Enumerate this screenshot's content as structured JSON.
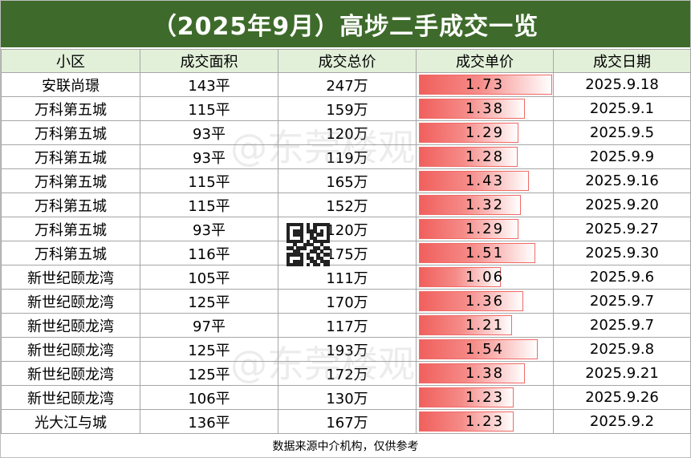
{
  "title": "（2025年9月）高埗二手成交一览",
  "headers": [
    "小区",
    "成交面积",
    "成交总价",
    "成交单价",
    "成交日期"
  ],
  "rows": [
    {
      "community": "安联尚璟",
      "area": "143平",
      "total": "247万",
      "unit_price": "1.73",
      "date": "2025.9.18"
    },
    {
      "community": "万科第五城",
      "area": "115平",
      "total": "159万",
      "unit_price": "1.38",
      "date": "2025.9.1"
    },
    {
      "community": "万科第五城",
      "area": "93平",
      "total": "120万",
      "unit_price": "1.29",
      "date": "2025.9.5"
    },
    {
      "community": "万科第五城",
      "area": "93平",
      "total": "119万",
      "unit_price": "1.28",
      "date": "2025.9.9"
    },
    {
      "community": "万科第五城",
      "area": "115平",
      "total": "165万",
      "unit_price": "1.43",
      "date": "2025.9.16"
    },
    {
      "community": "万科第五城",
      "area": "115平",
      "total": "152万",
      "unit_price": "1.32",
      "date": "2025.9.20"
    },
    {
      "community": "万科第五城",
      "area": "93平",
      "total": "120万",
      "unit_price": "1.29",
      "date": "2025.9.27"
    },
    {
      "community": "万科第五城",
      "area": "116平",
      "total": "175万",
      "unit_price": "1.51",
      "date": "2025.9.30"
    },
    {
      "community": "新世纪颐龙湾",
      "area": "105平",
      "total": "111万",
      "unit_price": "1.06",
      "date": "2025.9.6"
    },
    {
      "community": "新世纪颐龙湾",
      "area": "125平",
      "total": "170万",
      "unit_price": "1.36",
      "date": "2025.9.7"
    },
    {
      "community": "新世纪颐龙湾",
      "area": "97平",
      "total": "117万",
      "unit_price": "1.21",
      "date": "2025.9.7"
    },
    {
      "community": "新世纪颐龙湾",
      "area": "125平",
      "total": "193万",
      "unit_price": "1.54",
      "date": "2025.9.8"
    },
    {
      "community": "新世纪颐龙湾",
      "area": "125平",
      "total": "172万",
      "unit_price": "1.38",
      "date": "2025.9.21"
    },
    {
      "community": "新世纪颐龙湾",
      "area": "106平",
      "total": "130万",
      "unit_price": "1.23",
      "date": "2025.9.26"
    },
    {
      "community": "光大江与城",
      "area": "136平",
      "total": "167万",
      "unit_price": "1.23",
      "date": "2025.9.2"
    }
  ],
  "footer": "数据来源中介机构，仅供参考",
  "watermark": "@东莞楼观",
  "colors": {
    "title_bg": "#3e6b2b",
    "header_bg": "#e2f0d9",
    "bar": "#f0605d"
  }
}
